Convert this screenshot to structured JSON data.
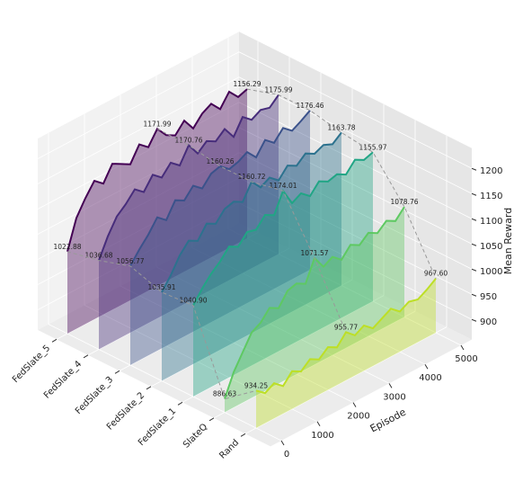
{
  "chart_data": {
    "type": "ridge3d",
    "x_label": "Episode",
    "z_label": "Mean Reward",
    "categories": [
      "Rand",
      "SlateQ",
      "FedSlate_1",
      "FedSlate_2",
      "FedSlate_3",
      "FedSlate_4",
      "FedSlate_5"
    ],
    "x": [
      0,
      250,
      500,
      750,
      1000,
      1250,
      1500,
      1750,
      2000,
      2250,
      2500,
      2750,
      3000,
      3250,
      3500,
      3750,
      4000,
      4250,
      4500,
      4750,
      5000
    ],
    "xlim": [
      -300,
      5300
    ],
    "xticks": [
      0,
      1000,
      2000,
      3000,
      4000,
      5000
    ],
    "zlim": [
      860,
      1240
    ],
    "zticks": [
      900,
      950,
      1000,
      1050,
      1100,
      1150,
      1200
    ],
    "series": [
      {
        "name": "Rand",
        "color": "#bddf26",
        "values": [
          934.25,
          920,
          930,
          915,
          935,
          925,
          940,
          930,
          945,
          935,
          955.77,
          940,
          950,
          935,
          945,
          955,
          940,
          950,
          945,
          955,
          967.6
        ],
        "value_labels": [
          "934.25",
          null,
          null,
          null,
          null,
          null,
          null,
          null,
          null,
          null,
          "955.77",
          null,
          null,
          null,
          null,
          null,
          null,
          null,
          null,
          null,
          "967.60"
        ]
      },
      {
        "name": "SlateQ",
        "color": "#5ec962",
        "values": [
          886.63,
          930,
          960,
          990,
          1000,
          1020,
          1010,
          1035,
          1040,
          1030,
          1071.57,
          1045,
          1055,
          1040,
          1060,
          1050,
          1065,
          1055,
          1070,
          1060,
          1078.76
        ],
        "value_labels": [
          "886.63",
          null,
          null,
          null,
          null,
          null,
          null,
          null,
          null,
          null,
          "1071.57",
          null,
          null,
          null,
          null,
          null,
          null,
          null,
          null,
          null,
          "1078.76"
        ]
      },
      {
        "name": "FedSlate_1",
        "color": "#21a585",
        "values": [
          1040.9,
          1065,
          1085,
          1100,
          1120,
          1110,
          1130,
          1125,
          1145,
          1135,
          1174.01,
          1140,
          1150,
          1135,
          1155,
          1145,
          1150,
          1140,
          1160,
          1150,
          1155.97
        ],
        "value_labels": [
          "1040.90",
          null,
          null,
          null,
          null,
          null,
          null,
          null,
          null,
          null,
          "1174.01",
          null,
          null,
          null,
          null,
          null,
          null,
          null,
          null,
          null,
          "1155.97"
        ]
      },
      {
        "name": "FedSlate_2",
        "color": "#2c728e",
        "values": [
          1035.91,
          1060,
          1090,
          1110,
          1100,
          1125,
          1115,
          1135,
          1140,
          1130,
          1160.72,
          1140,
          1150,
          1135,
          1155,
          1145,
          1160,
          1150,
          1158,
          1150,
          1163.78
        ],
        "value_labels": [
          "1035.91",
          null,
          null,
          null,
          null,
          null,
          null,
          null,
          null,
          null,
          "1160.72",
          null,
          null,
          null,
          null,
          null,
          null,
          null,
          null,
          null,
          "1163.78"
        ]
      },
      {
        "name": "FedSlate_3",
        "color": "#3b528b",
        "values": [
          1056.77,
          1080,
          1100,
          1125,
          1110,
          1140,
          1130,
          1150,
          1135,
          1155,
          1160.26,
          1145,
          1150,
          1160,
          1140,
          1165,
          1150,
          1170,
          1155,
          1165,
          1176.46
        ],
        "value_labels": [
          "1056.77",
          null,
          null,
          null,
          null,
          null,
          null,
          null,
          null,
          null,
          "1160.26",
          null,
          null,
          null,
          null,
          null,
          null,
          null,
          null,
          null,
          "1176.46"
        ]
      },
      {
        "name": "FedSlate_4",
        "color": "#472d7b",
        "values": [
          1036.68,
          1075,
          1105,
          1120,
          1140,
          1125,
          1150,
          1135,
          1155,
          1140,
          1170.76,
          1145,
          1160,
          1150,
          1165,
          1140,
          1170,
          1155,
          1165,
          1160,
          1175.99
        ],
        "value_labels": [
          "1036.68",
          null,
          null,
          null,
          null,
          null,
          null,
          null,
          null,
          null,
          "1170.76",
          null,
          null,
          null,
          null,
          null,
          null,
          null,
          null,
          null,
          "1175.99"
        ]
      },
      {
        "name": "FedSlate_5",
        "color": "#440154",
        "values": [
          1022.88,
          1080,
          1110,
          1135,
          1120,
          1150,
          1140,
          1130,
          1160,
          1145,
          1171.99,
          1150,
          1140,
          1160,
          1135,
          1155,
          1165,
          1145,
          1170,
          1150,
          1156.29
        ],
        "value_labels": [
          "1022.88",
          null,
          null,
          null,
          null,
          null,
          null,
          null,
          null,
          null,
          "1171.99",
          null,
          null,
          null,
          null,
          null,
          null,
          null,
          null,
          null,
          "1156.29"
        ]
      }
    ]
  }
}
